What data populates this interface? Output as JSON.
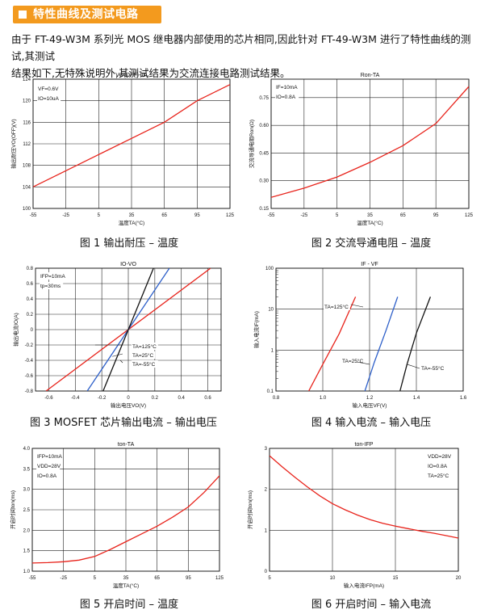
{
  "section": {
    "title": "特性曲线及测试电路"
  },
  "intro": {
    "line1": "由于 FT-49-W3M 系列光 MOS 继电器内部使用的芯片相同,因此针对 FT-49-W3M 进行了特性曲线的测试,其测试",
    "line2": "结果如下,无特殊说明外,其测试结果为交流连接电路测试结果。"
  },
  "captions": [
    "图 1 输出耐压 – 温度",
    "图 2 交流导通电阻 – 温度",
    "图 3 MOSFET 芯片输出电流 – 输出电压",
    "图 4 输入电流 – 输入电压",
    "图 5 开启时间 – 温度",
    "图 6 开启时间 – 输入电流"
  ],
  "colors": {
    "red": "#e8231b",
    "blue": "#2d5fc9",
    "black": "#111111",
    "accent": "#f39a1e"
  },
  "chart_data": [
    {
      "type": "line",
      "title": "VO(OFF)-TA",
      "xlabel": "温度TA(°C)",
      "ylabel": "输出耐压VO(OFF)(V)",
      "xlim": [
        -55,
        125
      ],
      "ylim": [
        100,
        124
      ],
      "xticks": [
        "-55",
        "-25",
        "5",
        "35",
        "65",
        "95",
        "125"
      ],
      "yticks": [
        "100",
        "104",
        "108",
        "112",
        "116",
        "120",
        "124"
      ],
      "annotations": [
        "VF=0.6V",
        "IO=10uA"
      ],
      "series": [
        {
          "color": "red",
          "x": [
            -55,
            -25,
            5,
            35,
            65,
            95,
            125
          ],
          "y": [
            104,
            107,
            110,
            113,
            116,
            120,
            123
          ]
        }
      ]
    },
    {
      "type": "line",
      "title": "Ron-TA",
      "xlabel": "温度TA(°C)",
      "ylabel": "交流导通电阻Ron(Ω)",
      "xlim": [
        -55,
        125
      ],
      "ylim": [
        0.15,
        0.85
      ],
      "xticks": [
        "-55",
        "-25",
        "5",
        "35",
        "65",
        "95",
        "125"
      ],
      "yticks": [
        "0.15",
        "0.30",
        "0.45",
        "0.60",
        "0.75"
      ],
      "annotations": [
        "IF=10mA",
        "IO=0.8A"
      ],
      "series": [
        {
          "color": "red",
          "x": [
            -55,
            -25,
            5,
            35,
            65,
            95,
            125
          ],
          "y": [
            0.21,
            0.26,
            0.32,
            0.4,
            0.49,
            0.61,
            0.81
          ]
        }
      ]
    },
    {
      "type": "line",
      "title": "IO-VO",
      "xlabel": "输出电压VO(V)",
      "ylabel": "输出电流IO(A)",
      "xlim": [
        -0.7,
        0.7
      ],
      "ylim": [
        -0.8,
        0.8
      ],
      "xticks": [
        "-0.6",
        "-0.4",
        "-0.2",
        "0",
        "0.2",
        "0.4",
        "0.6"
      ],
      "yticks": [
        "-0.8",
        "-0.6",
        "-0.4",
        "-0.2",
        "0",
        "0.2",
        "0.4",
        "0.6",
        "0.8"
      ],
      "annotations": [
        "IFP=10mA",
        "tp=30ms",
        "TA=125°C",
        "TA=25°C",
        "TA=-55°C"
      ],
      "series": [
        {
          "color": "red",
          "x": [
            -0.62,
            0.62
          ],
          "y": [
            -0.8,
            0.8
          ]
        },
        {
          "color": "blue",
          "x": [
            -0.31,
            0.31
          ],
          "y": [
            -0.8,
            0.8
          ]
        },
        {
          "color": "black",
          "x": [
            -0.19,
            0.19
          ],
          "y": [
            -0.8,
            0.8
          ]
        }
      ]
    },
    {
      "type": "line",
      "title": "IF - VF",
      "xlabel": "输入电压VF(V)",
      "ylabel": "输入电流IF(mA)",
      "xlim": [
        0.8,
        1.6
      ],
      "ylim": [
        0.1,
        100
      ],
      "yscale": "log",
      "xticks": [
        "0.8",
        "1.0",
        "1.2",
        "1.4",
        "1.6"
      ],
      "yticks": [
        "0.1",
        "1",
        "10",
        "100"
      ],
      "annotations": [
        "TA=125°C",
        "TA=25°C",
        "TA=-55°C"
      ],
      "series": [
        {
          "name": "TA=125°C",
          "color": "red",
          "x": [
            0.94,
            1.0,
            1.07,
            1.14
          ],
          "y": [
            0.1,
            0.45,
            2.5,
            20
          ]
        },
        {
          "name": "TA=25°C",
          "color": "blue",
          "x": [
            1.18,
            1.22,
            1.27,
            1.32
          ],
          "y": [
            0.1,
            0.5,
            3.0,
            20
          ]
        },
        {
          "name": "TA=-55°C",
          "color": "black",
          "x": [
            1.33,
            1.36,
            1.4,
            1.46
          ],
          "y": [
            0.1,
            0.45,
            2.6,
            20
          ]
        }
      ]
    },
    {
      "type": "line",
      "title": "ton-TA",
      "xlabel": "温度TA(°C)",
      "ylabel": "开启时间ton(ms)",
      "xlim": [
        -55,
        125
      ],
      "ylim": [
        1.0,
        4.0
      ],
      "xticks": [
        "-55",
        "-25",
        "5",
        "35",
        "65",
        "95",
        "125"
      ],
      "yticks": [
        "1.0",
        "1.5",
        "2.0",
        "2.5",
        "3.0",
        "3.5",
        "4.0"
      ],
      "annotations": [
        "IFP=10mA",
        "VDD=28V",
        "IO=0.8A"
      ],
      "series": [
        {
          "color": "red",
          "x": [
            -55,
            -40,
            -25,
            -10,
            5,
            20,
            35,
            50,
            65,
            80,
            95,
            110,
            125
          ],
          "y": [
            1.2,
            1.21,
            1.23,
            1.27,
            1.36,
            1.53,
            1.72,
            1.91,
            2.1,
            2.32,
            2.57,
            2.92,
            3.33
          ]
        }
      ]
    },
    {
      "type": "line",
      "title": "ton-IFP",
      "xlabel": "输入电流IFP(mA)",
      "ylabel": "开启时间ton(ms)",
      "xlim": [
        5,
        20
      ],
      "ylim": [
        0,
        3
      ],
      "xticks": [
        "5",
        "10",
        "15",
        "20"
      ],
      "yticks": [
        "0",
        "1",
        "2",
        "3"
      ],
      "annotations": [
        "VDD=28V",
        "IO=0.8A",
        "TA=25°C"
      ],
      "series": [
        {
          "color": "red",
          "x": [
            5,
            6,
            7,
            8,
            9,
            10,
            11,
            12,
            13,
            14,
            15,
            16,
            17,
            18,
            19,
            20
          ],
          "y": [
            2.82,
            2.55,
            2.3,
            2.06,
            1.84,
            1.65,
            1.5,
            1.37,
            1.26,
            1.17,
            1.1,
            1.04,
            0.98,
            0.93,
            0.87,
            0.81
          ]
        }
      ]
    }
  ]
}
